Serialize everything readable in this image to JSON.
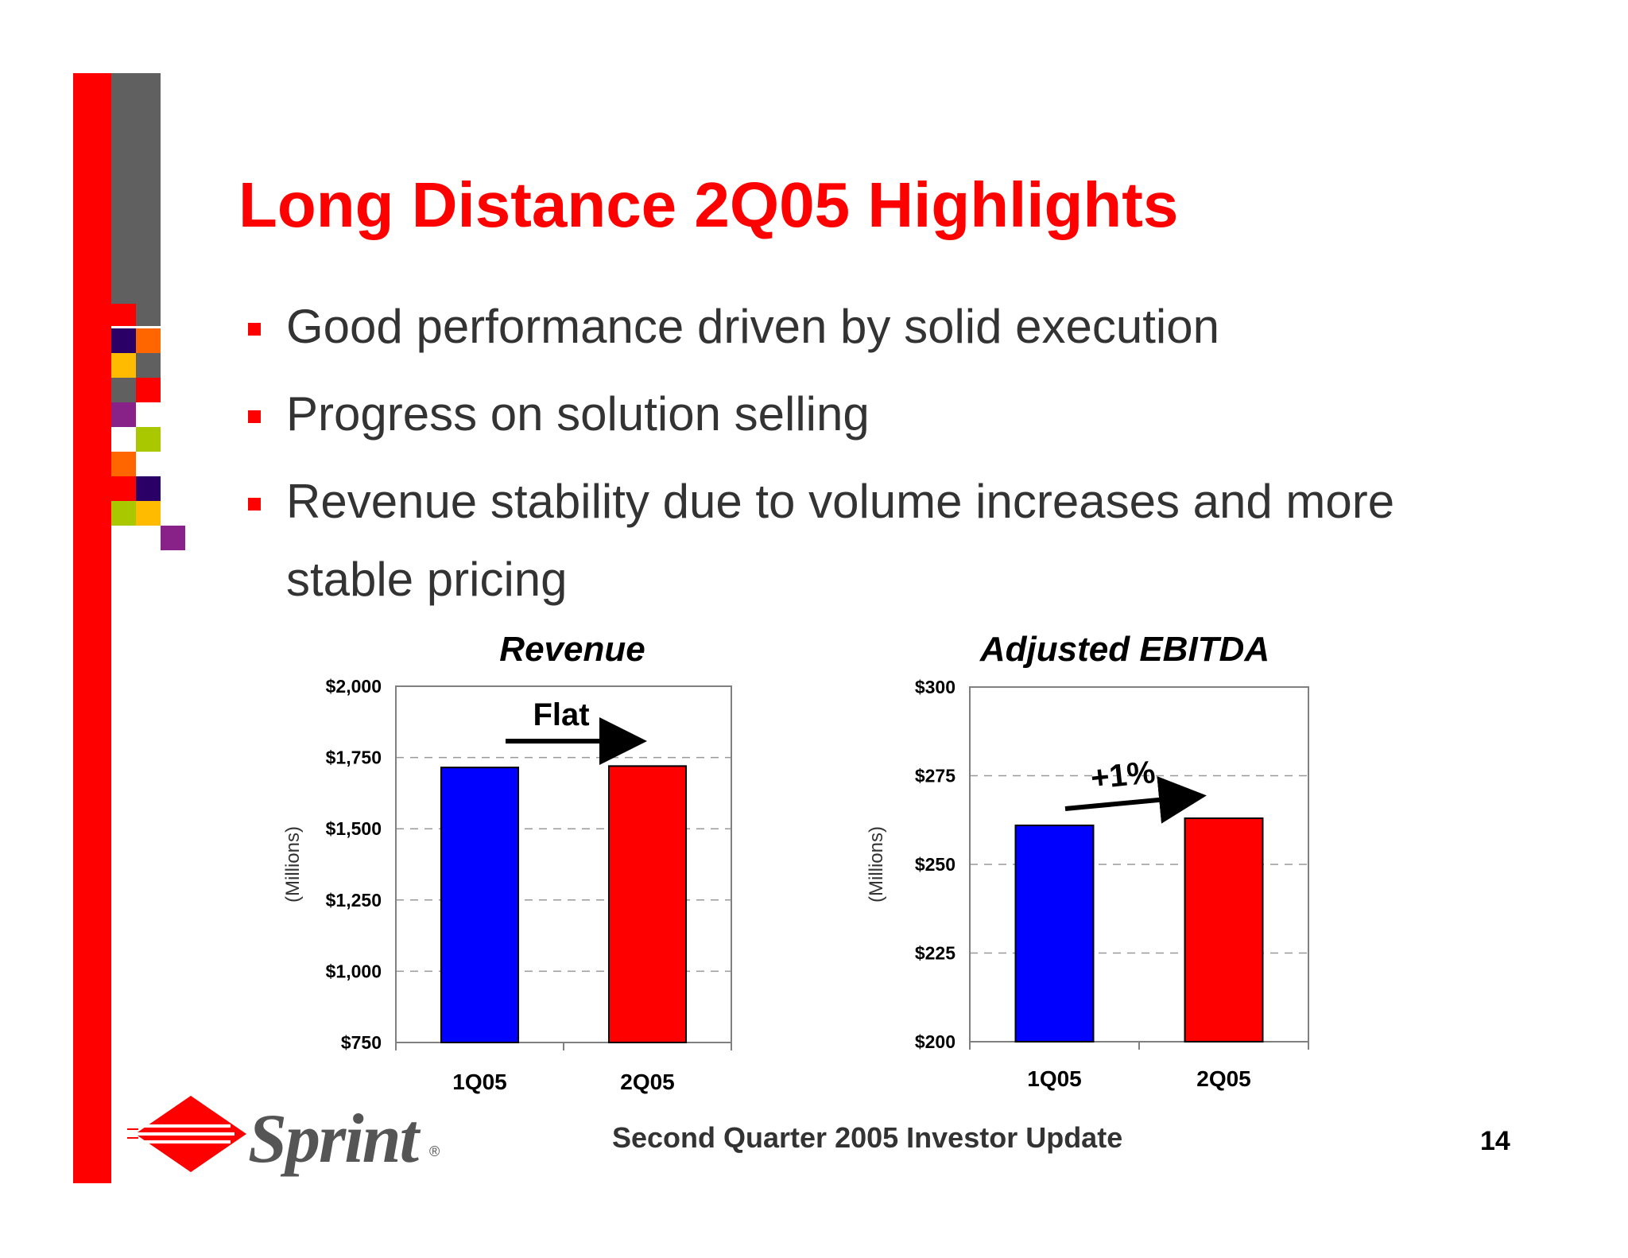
{
  "title": "Long Distance 2Q05 Highlights",
  "bullets": [
    "Good performance driven by solid execution",
    "Progress on solution selling",
    "Revenue stability due to volume increases and more stable pricing"
  ],
  "footer": {
    "center_text": "Second Quarter 2005 Investor Update",
    "page_number": "14",
    "logo_text": "Sprint",
    "logo_mark": "®"
  },
  "colors": {
    "title": "#ff0000",
    "accent_red": "#ff0000",
    "bar_1q05": "#0000ff",
    "bar_2q05": "#ff0000",
    "sidebar_gray": "#606060"
  },
  "chart_data": [
    {
      "type": "bar",
      "title": "Revenue",
      "ylabel": "(Millions)",
      "xlabel": "",
      "categories": [
        "1Q05",
        "2Q05"
      ],
      "values": [
        1715,
        1720
      ],
      "bar_colors": [
        "#0000ff",
        "#ff0000"
      ],
      "ylim": [
        750,
        2000
      ],
      "yticks": [
        750,
        1000,
        1250,
        1500,
        1750,
        2000
      ],
      "ytick_labels": [
        "$750",
        "$1,000",
        "$1,250",
        "$1,500",
        "$1,750",
        "$2,000"
      ],
      "grid": true,
      "annotation": "Flat"
    },
    {
      "type": "bar",
      "title": "Adjusted EBITDA",
      "ylabel": "(Millions)",
      "xlabel": "",
      "categories": [
        "1Q05",
        "2Q05"
      ],
      "values": [
        261,
        263
      ],
      "bar_colors": [
        "#0000ff",
        "#ff0000"
      ],
      "ylim": [
        200,
        300
      ],
      "yticks": [
        200,
        225,
        250,
        275,
        300
      ],
      "ytick_labels": [
        "$200",
        "$225",
        "$250",
        "$275",
        "$300"
      ],
      "grid": true,
      "annotation": "+1%"
    }
  ]
}
